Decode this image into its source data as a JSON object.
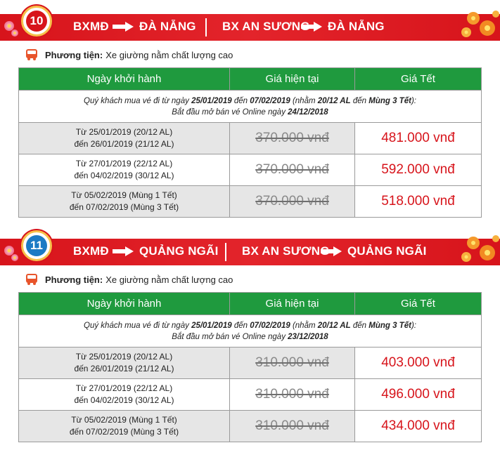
{
  "colors": {
    "route_bar": "#d7141b",
    "table_header": "#1f9a3e",
    "tet_price": "#d7141b",
    "old_price": "#8a8a8a",
    "badge_10": "#d7141b",
    "badge_11": "#1c7ac4"
  },
  "headers": {
    "date": "Ngày khởi hành",
    "current_price": "Giá hiện tại",
    "tet_price": "Giá Tết"
  },
  "sections": [
    {
      "number": "10",
      "route_from_1": "BXMĐ",
      "route_to_1": "ĐÀ NẴNG",
      "route_from_2": "BX AN SƯƠNG",
      "route_to_2": "ĐÀ NẴNG",
      "vehicle_label": "Phương tiện:",
      "vehicle_value": "Xe giường nằm chất lượng cao",
      "note": {
        "p1": "Quý khách mua vé đi từ ngày ",
        "d1": "25/01/2019",
        "p2": " đến ",
        "d2": "07/02/2019",
        "p3": " (nhằm ",
        "d3": "20/12 AL",
        "p4": " đến ",
        "d4": "Mùng 3 Tết",
        "p5": "):",
        "p6": "Bắt đầu mở bán vé Online ngày ",
        "d5": "24/12/2018"
      },
      "rows": [
        {
          "line1": "Từ 25/01/2019 (20/12 AL)",
          "line2": "đến 26/01/2019 (21/12 AL)",
          "current": "370.000 vnđ",
          "tet": "481.000 vnđ"
        },
        {
          "line1": "Từ 27/01/2019 (22/12 AL)",
          "line2": "đến 04/02/2019 (30/12 AL)",
          "current": "370.000 vnđ",
          "tet": "592.000 vnđ"
        },
        {
          "line1": "Từ 05/02/2019 (Mùng 1 Tết)",
          "line2": "đến 07/02/2019 (Mùng 3 Tết)",
          "current": "370.000 vnđ",
          "tet": "518.000 vnđ"
        }
      ]
    },
    {
      "number": "11",
      "route_from_1": "BXMĐ",
      "route_to_1": "QUẢNG NGÃI",
      "route_from_2": "BX AN SƯƠNG",
      "route_to_2": "QUẢNG NGÃI",
      "vehicle_label": "Phương tiện:",
      "vehicle_value": "Xe giường nằm chất lượng cao",
      "note": {
        "p1": "Quý khách mua vé đi từ ngày ",
        "d1": "25/01/2019",
        "p2": " đến ",
        "d2": "07/02/2019",
        "p3": " (nhằm ",
        "d3": "20/12 AL",
        "p4": " đến ",
        "d4": "Mùng 3 Tết",
        "p5": "):",
        "p6": "Bắt đầu mở bán vé Online ngày ",
        "d5": "23/12/2018"
      },
      "rows": [
        {
          "line1": "Từ 25/01/2019 (20/12 AL)",
          "line2": "đến 26/01/2019 (21/12 AL)",
          "current": "310.000 vnđ",
          "tet": "403.000 vnđ"
        },
        {
          "line1": "Từ 27/01/2019 (22/12 AL)",
          "line2": "đến 04/02/2019 (30/12 AL)",
          "current": "310.000 vnđ",
          "tet": "496.000 vnđ"
        },
        {
          "line1": "Từ 05/02/2019 (Mùng 1 Tết)",
          "line2": "đến 07/02/2019 (Mùng 3 Tết)",
          "current": "310.000 vnđ",
          "tet": "434.000 vnđ"
        }
      ]
    }
  ]
}
